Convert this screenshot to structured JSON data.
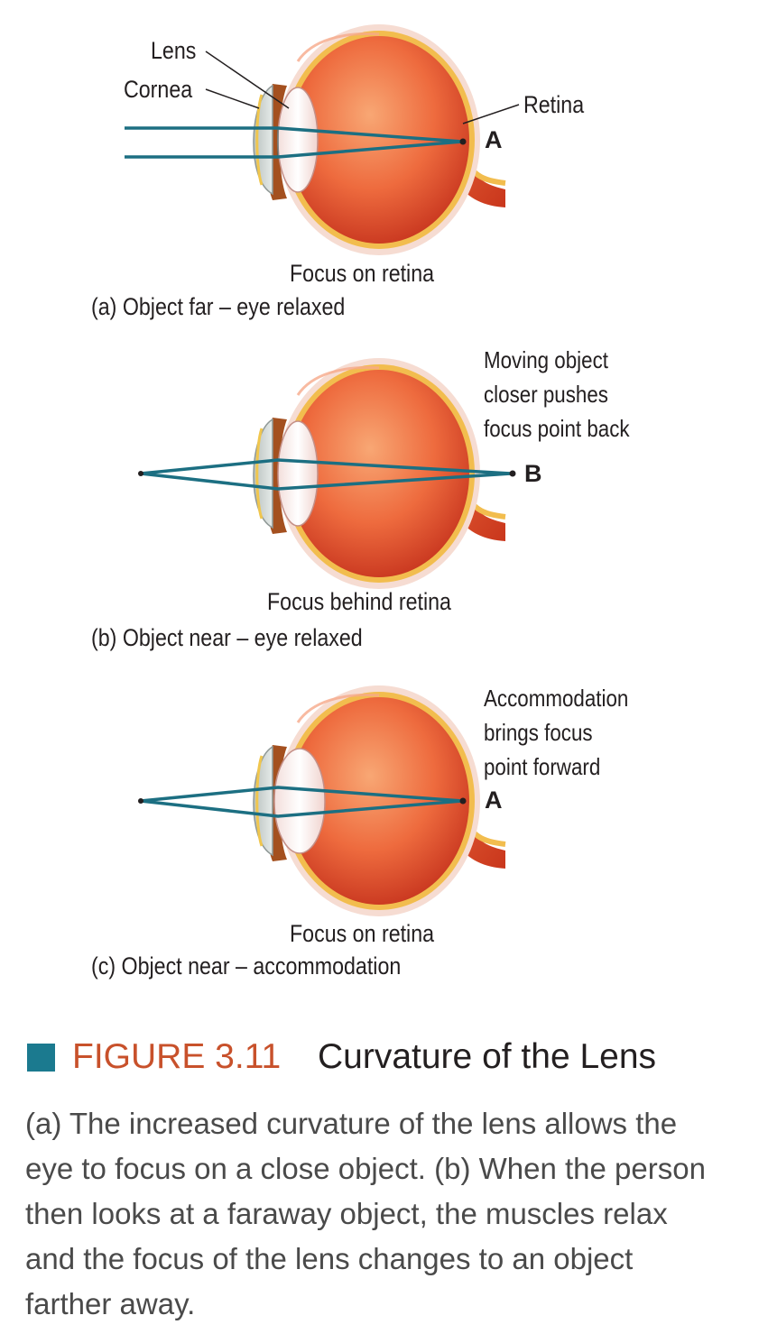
{
  "colors": {
    "ray": "#1c6f82",
    "accent_square": "#1b7a8f",
    "figure_number": "#c8512b",
    "eye_body": "#e9603a",
    "retina_band": "#f2bd4e"
  },
  "labels": {
    "lens": "Lens",
    "cornea": "Cornea",
    "retina": "Retina"
  },
  "panels": [
    {
      "point": "A",
      "focus_text": "Focus on retina",
      "caption": "(a)  Object far – eye relaxed",
      "note_lines": []
    },
    {
      "point": "B",
      "focus_text": "Focus behind retina",
      "caption": "(b)  Object near – eye relaxed",
      "note_lines": [
        "Moving object",
        "closer pushes",
        "focus point back"
      ]
    },
    {
      "point": "A",
      "focus_text": "Focus on retina",
      "caption": "(c)  Object near – accommodation",
      "note_lines": [
        "Accommodation",
        "brings focus",
        "point forward"
      ]
    }
  ],
  "figure": {
    "number": "FIGURE 3.11",
    "title": "Curvature of the Lens",
    "caption_lines": [
      "(a) The increased curvature of the lens allows the",
      "eye to focus on a close object. (b) When the person",
      "then looks at a faraway object, the muscles relax",
      "and the focus of the lens changes to an object",
      "farther away."
    ]
  }
}
